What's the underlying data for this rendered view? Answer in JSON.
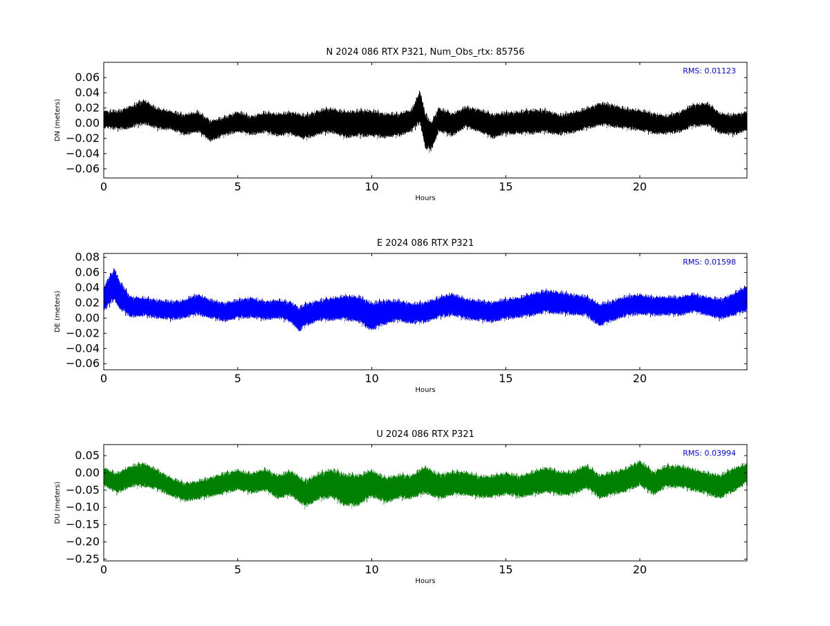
{
  "chart_data": [
    {
      "type": "scatter",
      "title": "N 2024 086 RTX  P321, Num_Obs_rtx: 85756",
      "xlabel": "Hours",
      "ylabel": "DN (meters)",
      "xlim": [
        0,
        24
      ],
      "ylim": [
        -0.072,
        0.08
      ],
      "xticks": [
        0,
        5,
        10,
        15,
        20
      ],
      "yticks": [
        -0.06,
        -0.04,
        -0.02,
        0.0,
        0.02,
        0.04,
        0.06
      ],
      "yticklabels": [
        "−0.06",
        "−0.04",
        "−0.02",
        "0.00",
        "0.02",
        "0.04",
        "0.06"
      ],
      "annotation": "RMS:  0.01123",
      "color": "#000000",
      "series": [
        {
          "x": [
            0,
            0.5,
            1,
            1.5,
            2,
            2.5,
            3,
            3.5,
            4,
            4.5,
            5,
            5.5,
            6,
            6.5,
            7,
            7.5,
            8,
            8.5,
            9,
            9.5,
            10,
            10.5,
            11,
            11.5,
            11.8,
            12,
            12.2,
            12.5,
            13,
            13.5,
            14,
            14.5,
            15,
            15.5,
            16,
            16.5,
            17,
            17.5,
            18,
            18.5,
            19,
            19.5,
            20,
            20.5,
            21,
            21.5,
            22,
            22.5,
            23,
            23.5,
            24
          ],
          "y": [
            0.005,
            0.004,
            0.008,
            0.015,
            0.006,
            0.004,
            -0.002,
            0.002,
            -0.01,
            -0.004,
            0.002,
            -0.003,
            0.001,
            -0.002,
            0.0,
            -0.005,
            0.001,
            0.004,
            -0.002,
            0.0,
            0.0,
            -0.003,
            -0.002,
            0.004,
            0.022,
            -0.01,
            -0.018,
            0.005,
            -0.002,
            0.008,
            0.004,
            -0.004,
            0.0,
            0.001,
            0.002,
            0.003,
            -0.002,
            0.001,
            0.006,
            0.012,
            0.01,
            0.006,
            0.004,
            0.0,
            -0.002,
            0.002,
            0.01,
            0.012,
            0.0,
            -0.002,
            0.003
          ],
          "spread": [
            0.01,
            0.011,
            0.013,
            0.014,
            0.012,
            0.011,
            0.012,
            0.012,
            0.012,
            0.011,
            0.012,
            0.011,
            0.012,
            0.013,
            0.013,
            0.014,
            0.014,
            0.014,
            0.015,
            0.015,
            0.015,
            0.014,
            0.013,
            0.013,
            0.018,
            0.02,
            0.016,
            0.014,
            0.013,
            0.012,
            0.013,
            0.014,
            0.013,
            0.013,
            0.014,
            0.013,
            0.012,
            0.012,
            0.012,
            0.013,
            0.013,
            0.012,
            0.012,
            0.012,
            0.011,
            0.012,
            0.013,
            0.013,
            0.012,
            0.012,
            0.011
          ]
        }
      ]
    },
    {
      "type": "scatter",
      "title": "E 2024 086 RTX  P321",
      "xlabel": "Hours",
      "ylabel": "DE (meters)",
      "xlim": [
        0,
        24
      ],
      "ylim": [
        -0.068,
        0.085
      ],
      "xticks": [
        0,
        5,
        10,
        15,
        20
      ],
      "yticks": [
        -0.06,
        -0.04,
        -0.02,
        0.0,
        0.02,
        0.04,
        0.06,
        0.08
      ],
      "yticklabels": [
        "−0.06",
        "−0.04",
        "−0.02",
        "0.00",
        "0.02",
        "0.04",
        "0.06",
        "0.08"
      ],
      "annotation": "RMS:  0.01598",
      "color": "#0000ff",
      "series": [
        {
          "x": [
            0,
            0.2,
            0.4,
            0.6,
            1,
            1.5,
            2,
            2.5,
            3,
            3.5,
            4,
            4.5,
            5,
            5.5,
            6,
            6.5,
            7,
            7.3,
            7.5,
            8,
            8.5,
            9,
            9.5,
            10,
            10.5,
            11,
            11.5,
            12,
            12.5,
            13,
            13.5,
            14,
            14.5,
            15,
            15.5,
            16,
            16.5,
            17,
            17.5,
            18,
            18.5,
            19,
            19.5,
            20,
            20.5,
            21,
            21.5,
            22,
            22.5,
            23,
            23.5,
            24
          ],
          "y": [
            0.025,
            0.035,
            0.045,
            0.03,
            0.015,
            0.015,
            0.012,
            0.01,
            0.012,
            0.018,
            0.012,
            0.008,
            0.012,
            0.014,
            0.01,
            0.012,
            0.008,
            -0.002,
            0.004,
            0.01,
            0.012,
            0.014,
            0.012,
            0.002,
            0.008,
            0.01,
            0.006,
            0.008,
            0.014,
            0.018,
            0.012,
            0.01,
            0.008,
            0.012,
            0.014,
            0.018,
            0.022,
            0.02,
            0.018,
            0.016,
            0.004,
            0.01,
            0.016,
            0.018,
            0.016,
            0.016,
            0.016,
            0.02,
            0.016,
            0.012,
            0.018,
            0.026
          ],
          "spread": [
            0.014,
            0.016,
            0.018,
            0.016,
            0.012,
            0.011,
            0.011,
            0.011,
            0.011,
            0.012,
            0.011,
            0.011,
            0.011,
            0.012,
            0.011,
            0.011,
            0.012,
            0.014,
            0.013,
            0.012,
            0.013,
            0.014,
            0.015,
            0.016,
            0.014,
            0.012,
            0.012,
            0.012,
            0.012,
            0.013,
            0.012,
            0.012,
            0.012,
            0.012,
            0.012,
            0.013,
            0.013,
            0.013,
            0.012,
            0.012,
            0.013,
            0.012,
            0.012,
            0.012,
            0.011,
            0.011,
            0.011,
            0.011,
            0.011,
            0.012,
            0.013,
            0.015
          ]
        }
      ]
    },
    {
      "type": "scatter",
      "title": "U 2024 086 RTX  P321",
      "xlabel": "Hours",
      "ylabel": "DU (meters)",
      "xlim": [
        0,
        24
      ],
      "ylim": [
        -0.255,
        0.082
      ],
      "xticks": [
        0,
        5,
        10,
        15,
        20
      ],
      "yticks": [
        -0.25,
        -0.2,
        -0.15,
        -0.1,
        -0.05,
        0.0,
        0.05
      ],
      "yticklabels": [
        "−0.25",
        "−0.20",
        "−0.15",
        "−0.10",
        "−0.05",
        "0.00",
        "0.05"
      ],
      "annotation": "RMS:  0.03994",
      "color": "#008000",
      "series": [
        {
          "x": [
            0,
            0.5,
            1,
            1.5,
            2,
            2.5,
            3,
            3.5,
            4,
            4.5,
            5,
            5.5,
            6,
            6.5,
            7,
            7.5,
            8,
            8.5,
            9,
            9.5,
            10,
            10.5,
            11,
            11.5,
            12,
            12.5,
            13,
            13.5,
            14,
            14.5,
            15,
            15.5,
            16,
            16.5,
            17,
            17.5,
            18,
            18.5,
            19,
            19.5,
            20,
            20.5,
            21,
            21.5,
            22,
            22.5,
            23,
            23.5,
            24
          ],
          "y": [
            -0.01,
            -0.03,
            -0.01,
            -0.005,
            -0.02,
            -0.04,
            -0.055,
            -0.05,
            -0.04,
            -0.03,
            -0.02,
            -0.03,
            -0.02,
            -0.04,
            -0.03,
            -0.06,
            -0.04,
            -0.03,
            -0.05,
            -0.05,
            -0.03,
            -0.05,
            -0.04,
            -0.04,
            -0.02,
            -0.04,
            -0.03,
            -0.03,
            -0.04,
            -0.04,
            -0.03,
            -0.04,
            -0.03,
            -0.02,
            -0.03,
            -0.03,
            -0.01,
            -0.04,
            -0.03,
            -0.02,
            0.0,
            -0.03,
            -0.01,
            -0.01,
            -0.02,
            -0.03,
            -0.04,
            -0.02,
            0.0
          ],
          "spread": [
            0.024,
            0.026,
            0.028,
            0.03,
            0.026,
            0.024,
            0.024,
            0.024,
            0.025,
            0.027,
            0.026,
            0.026,
            0.028,
            0.03,
            0.032,
            0.034,
            0.034,
            0.036,
            0.04,
            0.038,
            0.034,
            0.032,
            0.03,
            0.03,
            0.034,
            0.032,
            0.03,
            0.03,
            0.028,
            0.028,
            0.028,
            0.028,
            0.03,
            0.032,
            0.03,
            0.03,
            0.03,
            0.03,
            0.03,
            0.03,
            0.032,
            0.03,
            0.028,
            0.028,
            0.028,
            0.028,
            0.03,
            0.03,
            0.026
          ]
        }
      ]
    }
  ]
}
